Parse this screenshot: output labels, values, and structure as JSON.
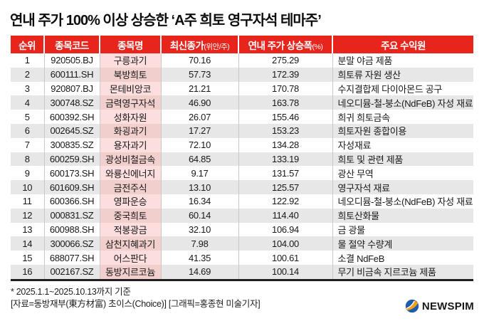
{
  "title": "연내 주가 100% 이상 상승한 ‘A주 희토 영구자석 테마주’",
  "chart_data": {
    "type": "table",
    "title": "연내 주가 100% 이상 상승한 ‘A주 희토 영구자석 테마주’",
    "columns": [
      "순위",
      "종목코드",
      "종목명",
      "최신종가(위안/주)",
      "연내 주가 상승폭(%)",
      "주요 수익원"
    ],
    "rows": [
      [
        "1",
        "920505.BJ",
        "구릉과기",
        "70.16",
        "275.29",
        "분말 야금 제품"
      ],
      [
        "2",
        "600111.SH",
        "북방희토",
        "57.73",
        "172.39",
        "희토류 자원 생산"
      ],
      [
        "3",
        "920807.BJ",
        "몬테비앙코",
        "21.21",
        "170.78",
        "수지결합제 다이아몬드 공구"
      ],
      [
        "4",
        "300748.SZ",
        "금력영구자석",
        "46.90",
        "163.78",
        "네오디뮴-철-붕소(NdFeB) 자성 재료"
      ],
      [
        "5",
        "600392.SH",
        "성화자원",
        "26.07",
        "155.46",
        "희귀 희토금속"
      ],
      [
        "6",
        "002645.SZ",
        "화굉과기",
        "17.27",
        "153.23",
        "희토자원 종합이용"
      ],
      [
        "7",
        "300835.SZ",
        "용자과기",
        "72.10",
        "134.28",
        "자성재료"
      ],
      [
        "8",
        "600259.SH",
        "광성비철금속",
        "64.85",
        "133.19",
        "희토 및 관련 제품"
      ],
      [
        "9",
        "600173.SH",
        "와룡신에너지",
        "9.17",
        "131.57",
        "광산 무역"
      ],
      [
        "10",
        "601609.SH",
        "금전주식",
        "13.10",
        "125.57",
        "영구자석 재료"
      ],
      [
        "11",
        "600366.SH",
        "영파운승",
        "16.34",
        "122.92",
        "네오디뮴-철-붕소(NdFeB) 자성 재료"
      ],
      [
        "12",
        "000831.SZ",
        "중국희토",
        "60.14",
        "114.40",
        "희토산화물"
      ],
      [
        "13",
        "600988.SH",
        "적봉광금",
        "32.10",
        "106.94",
        "금 광물"
      ],
      [
        "14",
        "300066.SZ",
        "삼천지혜과기",
        "7.98",
        "104.00",
        "물 절약 수량계"
      ],
      [
        "15",
        "688077.SH",
        "어스판다",
        "41.35",
        "100.61",
        "소결 NdFeB"
      ],
      [
        "16",
        "002167.SZ",
        "동방지르코늄",
        "14.69",
        "100.14",
        "무기 비금속 지르코늄 제품"
      ]
    ]
  },
  "table": {
    "headers": [
      {
        "label": "순위",
        "sub": ""
      },
      {
        "label": "종목코드",
        "sub": ""
      },
      {
        "label": "종목명",
        "sub": ""
      },
      {
        "label": "최신종가",
        "sub": "(위안/주)"
      },
      {
        "label": "연내 주가 상승폭",
        "sub": "(%)"
      },
      {
        "label": "주요 수익원",
        "sub": ""
      }
    ]
  },
  "footer": {
    "note1": "* 2025.1.1~2025.10.13까지 기준",
    "note2": "[자료=동방재부(東方材富) 초이스(Choice)] [그래픽=홍종현 미술기자]",
    "logo_text": "NEWSPIM"
  },
  "colors": {
    "header_red": "#e8251c",
    "row_alt_gray": "#e7e7e7",
    "name_col_pink": "#fbdedd",
    "name_col_pink_alt": "#f1cfcd",
    "table_bottom_border": "#1f1f1f",
    "logo_blue": "#1d5dab",
    "logo_orange": "#f6a01a"
  }
}
